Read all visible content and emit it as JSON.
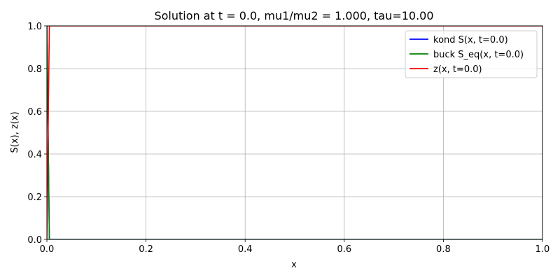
{
  "chart_data": {
    "type": "line",
    "title": "Solution at t = 0.0, mu1/mu2 = 1.000, tau=10.00",
    "xlabel": "x",
    "ylabel": "S(x), z(x)",
    "xlim": [
      0.0,
      1.0
    ],
    "ylim": [
      0.0,
      1.0
    ],
    "x_ticks": [
      "0.0",
      "0.2",
      "0.4",
      "0.6",
      "0.8",
      "1.0"
    ],
    "y_ticks": [
      "0.0",
      "0.2",
      "0.4",
      "0.6",
      "0.8",
      "1.0"
    ],
    "grid": true,
    "legend_position": "top-right",
    "series": [
      {
        "name": "kond S(x, t=0.0)",
        "color": "#0000ff",
        "x": [
          0.0,
          0.005,
          1.0
        ],
        "y": [
          1.0,
          0.0,
          0.0
        ]
      },
      {
        "name": "buck S_eq(x, t=0.0)",
        "color": "#008000",
        "x": [
          0.0,
          0.005,
          1.0
        ],
        "y": [
          1.0,
          0.0,
          0.0
        ]
      },
      {
        "name": "z(x, t=0.0)",
        "color": "#ff0000",
        "x": [
          0.0,
          0.005,
          1.0
        ],
        "y": [
          0.0,
          1.0,
          1.0
        ]
      }
    ]
  }
}
